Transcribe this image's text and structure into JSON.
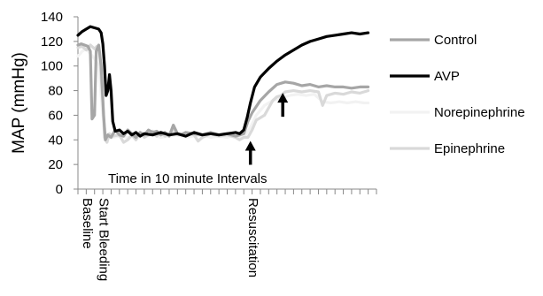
{
  "chart_data": {
    "type": "line",
    "title": "",
    "ylabel": "MAP (mmHg)",
    "xlabel": "",
    "ylim": [
      0,
      140
    ],
    "yticks": [
      0,
      20,
      40,
      60,
      80,
      100,
      120,
      140
    ],
    "x_count": 36,
    "x_categories": [
      {
        "index": 0,
        "label": "Baseline"
      },
      {
        "index": 2,
        "label": "Start Bleeding"
      },
      {
        "index": 20,
        "label": "Resuscitation"
      }
    ],
    "annotation": "Time in 10 minute Intervals",
    "arrows": [
      {
        "x": 20.8,
        "y": 37
      },
      {
        "x": 24.7,
        "y": 76
      }
    ],
    "legend_position": "right",
    "grid": false,
    "series": [
      {
        "name": "Control",
        "color": "#a6a6a6",
        "points": [
          [
            0,
            117
          ],
          [
            0.4,
            118
          ],
          [
            0.8,
            117
          ],
          [
            1.2,
            116
          ],
          [
            1.5,
            112
          ],
          [
            1.7,
            57
          ],
          [
            2.0,
            60
          ],
          [
            2.2,
            112
          ],
          [
            2.5,
            117
          ],
          [
            2.8,
            100
          ],
          [
            3.1,
            60
          ],
          [
            3.3,
            40
          ],
          [
            3.6,
            44
          ],
          [
            4.0,
            42
          ],
          [
            4.5,
            48
          ],
          [
            5,
            44
          ],
          [
            5.5,
            43
          ],
          [
            6,
            48
          ],
          [
            6.5,
            45
          ],
          [
            7,
            42
          ],
          [
            7.5,
            46
          ],
          [
            8,
            44
          ],
          [
            8.5,
            48
          ],
          [
            9,
            46
          ],
          [
            9.5,
            47
          ],
          [
            10,
            44
          ],
          [
            10.5,
            46
          ],
          [
            11,
            43
          ],
          [
            11.5,
            52
          ],
          [
            12,
            45
          ],
          [
            12.5,
            44
          ],
          [
            13,
            46
          ],
          [
            14,
            45
          ],
          [
            15,
            44
          ],
          [
            16,
            46
          ],
          [
            17,
            44
          ],
          [
            18,
            45
          ],
          [
            19,
            43
          ],
          [
            19.5,
            44
          ],
          [
            20,
            45
          ],
          [
            20.5,
            55
          ],
          [
            21,
            62
          ],
          [
            22,
            72
          ],
          [
            23,
            79
          ],
          [
            24,
            85
          ],
          [
            25,
            87
          ],
          [
            26,
            86
          ],
          [
            27,
            84
          ],
          [
            28,
            85
          ],
          [
            29,
            83
          ],
          [
            30,
            84
          ],
          [
            31,
            83
          ],
          [
            32,
            83
          ],
          [
            33,
            82
          ],
          [
            34,
            83
          ],
          [
            35,
            83
          ]
        ]
      },
      {
        "name": "AVP",
        "color": "#000000",
        "points": [
          [
            0,
            125
          ],
          [
            0.5,
            128
          ],
          [
            1,
            130
          ],
          [
            1.5,
            132
          ],
          [
            2,
            131
          ],
          [
            2.5,
            130
          ],
          [
            2.8,
            127
          ],
          [
            3.0,
            118
          ],
          [
            3.2,
            100
          ],
          [
            3.4,
            76
          ],
          [
            3.6,
            80
          ],
          [
            3.8,
            93
          ],
          [
            4.0,
            80
          ],
          [
            4.2,
            55
          ],
          [
            4.5,
            47
          ],
          [
            5,
            48
          ],
          [
            5.5,
            45
          ],
          [
            6,
            47
          ],
          [
            6.5,
            44
          ],
          [
            7,
            46
          ],
          [
            7.5,
            43
          ],
          [
            8,
            45
          ],
          [
            9,
            44
          ],
          [
            10,
            46
          ],
          [
            11,
            44
          ],
          [
            12,
            45
          ],
          [
            13,
            43
          ],
          [
            14,
            46
          ],
          [
            15,
            44
          ],
          [
            16,
            45
          ],
          [
            17,
            44
          ],
          [
            18,
            45
          ],
          [
            19,
            46
          ],
          [
            19.5,
            45
          ],
          [
            20,
            48
          ],
          [
            20.4,
            58
          ],
          [
            20.8,
            70
          ],
          [
            21.3,
            83
          ],
          [
            22,
            91
          ],
          [
            23,
            98
          ],
          [
            24,
            104
          ],
          [
            25,
            109
          ],
          [
            26,
            113
          ],
          [
            27,
            117
          ],
          [
            28,
            120
          ],
          [
            29,
            122
          ],
          [
            30,
            124
          ],
          [
            31,
            125
          ],
          [
            32,
            126
          ],
          [
            33,
            127
          ],
          [
            34,
            126
          ],
          [
            35,
            127
          ]
        ]
      },
      {
        "name": "Norepinephrine",
        "color": "#f2f2f2",
        "points": [
          [
            0,
            108
          ],
          [
            0.5,
            112
          ],
          [
            1,
            114
          ],
          [
            1.5,
            110
          ],
          [
            2,
            106
          ],
          [
            2.5,
            100
          ],
          [
            3.0,
            60
          ],
          [
            3.3,
            46
          ],
          [
            3.7,
            44
          ],
          [
            4.2,
            42
          ],
          [
            5,
            43
          ],
          [
            6,
            42
          ],
          [
            7,
            44
          ],
          [
            8,
            43
          ],
          [
            9,
            44
          ],
          [
            10,
            42
          ],
          [
            11,
            43
          ],
          [
            12,
            44
          ],
          [
            13,
            42
          ],
          [
            14,
            43
          ],
          [
            15,
            44
          ],
          [
            16,
            42
          ],
          [
            17,
            43
          ],
          [
            18,
            42
          ],
          [
            19,
            44
          ],
          [
            20,
            42
          ],
          [
            20.8,
            50
          ],
          [
            21.5,
            60
          ],
          [
            22.5,
            68
          ],
          [
            23.5,
            72
          ],
          [
            24.5,
            74
          ],
          [
            25.5,
            76
          ],
          [
            26.5,
            77
          ],
          [
            27.5,
            76
          ],
          [
            28.5,
            77
          ],
          [
            29.5,
            71
          ],
          [
            30.5,
            70
          ],
          [
            31.5,
            71
          ],
          [
            32.5,
            70
          ],
          [
            33.5,
            71
          ],
          [
            34.5,
            70
          ],
          [
            35,
            70
          ]
        ]
      },
      {
        "name": "Epinephrine",
        "color": "#d9d9d9",
        "points": [
          [
            0,
            115
          ],
          [
            0.5,
            116
          ],
          [
            1,
            113
          ],
          [
            1.5,
            117
          ],
          [
            2,
            114
          ],
          [
            2.3,
            116
          ],
          [
            2.6,
            112
          ],
          [
            3.0,
            70
          ],
          [
            3.2,
            42
          ],
          [
            3.5,
            38
          ],
          [
            3.8,
            45
          ],
          [
            4.2,
            43
          ],
          [
            5,
            44
          ],
          [
            5.5,
            38
          ],
          [
            6,
            40
          ],
          [
            6.5,
            44
          ],
          [
            7,
            40
          ],
          [
            7.5,
            46
          ],
          [
            8,
            42
          ],
          [
            8.5,
            44
          ],
          [
            9,
            47
          ],
          [
            9.5,
            43
          ],
          [
            10,
            46
          ],
          [
            10.5,
            43
          ],
          [
            11,
            45
          ],
          [
            11.5,
            48
          ],
          [
            12,
            44
          ],
          [
            13,
            46
          ],
          [
            14,
            44
          ],
          [
            14.5,
            39
          ],
          [
            15,
            42
          ],
          [
            16,
            45
          ],
          [
            17,
            43
          ],
          [
            18,
            44
          ],
          [
            19,
            42
          ],
          [
            19.5,
            40
          ],
          [
            20,
            42
          ],
          [
            20.5,
            42
          ],
          [
            21,
            48
          ],
          [
            21.5,
            56
          ],
          [
            22,
            58
          ],
          [
            22.5,
            60
          ],
          [
            23,
            66
          ],
          [
            23.5,
            72
          ],
          [
            24,
            75
          ],
          [
            24.5,
            76
          ],
          [
            25,
            79
          ],
          [
            26,
            80
          ],
          [
            27,
            79
          ],
          [
            28,
            80
          ],
          [
            29,
            79
          ],
          [
            29.5,
            68
          ],
          [
            30,
            76
          ],
          [
            31,
            78
          ],
          [
            32,
            77
          ],
          [
            33,
            79
          ],
          [
            34,
            78
          ],
          [
            35,
            80
          ]
        ]
      }
    ]
  }
}
